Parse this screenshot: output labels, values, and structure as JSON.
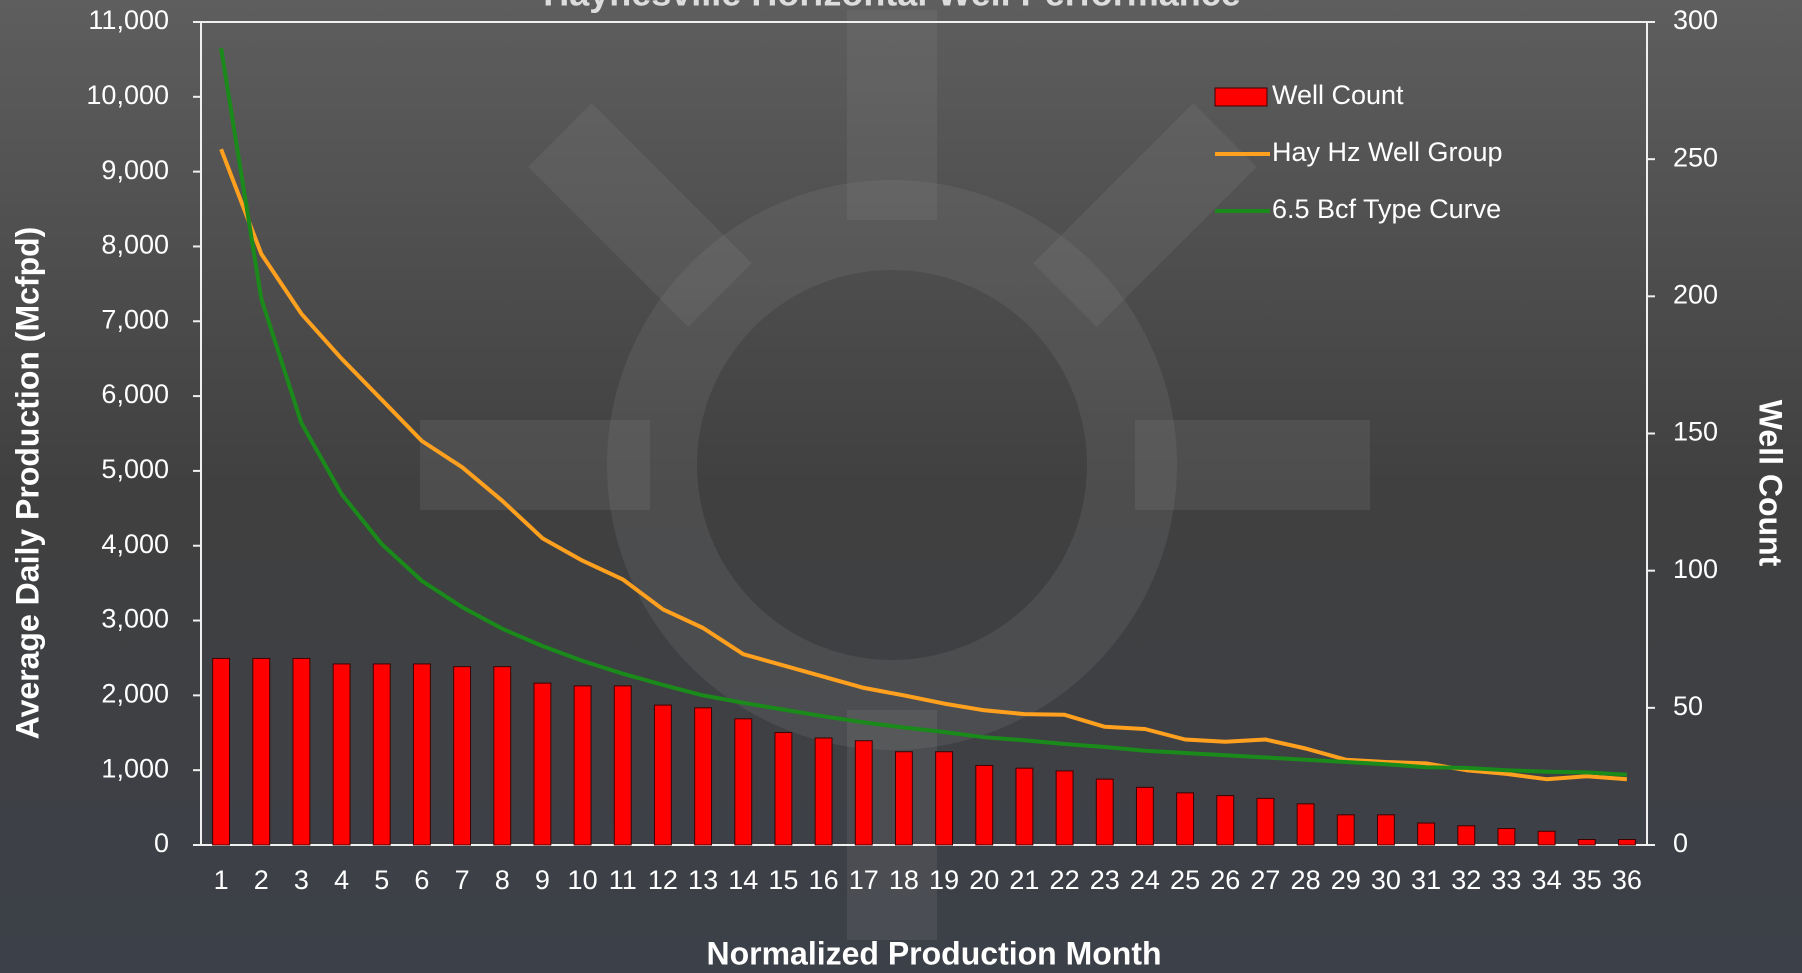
{
  "chart_data": {
    "type": "bar",
    "title": "Haynesville Horizontal Well Performance",
    "x_label": "Normalized Production Month",
    "y_label": "Average Daily Production (Mcfpd)",
    "y2_label": "Well Count",
    "categories": [
      "1",
      "2",
      "3",
      "4",
      "5",
      "6",
      "7",
      "8",
      "9",
      "10",
      "11",
      "12",
      "13",
      "14",
      "15",
      "16",
      "17",
      "18",
      "19",
      "20",
      "21",
      "22",
      "23",
      "24",
      "25",
      "26",
      "27",
      "28",
      "29",
      "30",
      "31",
      "32",
      "33",
      "34",
      "35",
      "36"
    ],
    "ylim": [
      0,
      11000
    ],
    "yticks": [
      0,
      {
        "value": 1000,
        "label": "1,000"
      },
      {
        "value": 2000,
        "label": "2,000"
      },
      {
        "value": 3000,
        "label": "3,000"
      },
      {
        "value": 4000,
        "label": "4,000"
      },
      {
        "value": 5000,
        "label": "5,000"
      },
      {
        "value": 6000,
        "label": "6,000"
      },
      {
        "value": 7000,
        "label": "7,000"
      },
      {
        "value": 8000,
        "label": "8,000"
      },
      {
        "value": 9000,
        "label": "9,000"
      },
      {
        "value": 10000,
        "label": "10,000"
      },
      {
        "value": 11000,
        "label": "11,000"
      }
    ],
    "y2lim": [
      0,
      300
    ],
    "y2ticks": [
      0,
      50,
      100,
      150,
      200,
      250,
      300
    ],
    "grid": false,
    "legend": "top-right",
    "series": [
      {
        "name": "Well Count",
        "type": "bar",
        "axis": "y2",
        "color": "#ff0000",
        "values": [
          68,
          68,
          68,
          66,
          66,
          66,
          65,
          65,
          59,
          58,
          58,
          51,
          50,
          46,
          41,
          39,
          38,
          34,
          34,
          29,
          28,
          27,
          24,
          21,
          19,
          18,
          17,
          15,
          11,
          11,
          8,
          7,
          6,
          5,
          2,
          2
        ]
      },
      {
        "name": "Hay Hz Well Group",
        "type": "line",
        "color": "#ffa01e",
        "values": [
          9300,
          7900,
          7100,
          6500,
          5950,
          5400,
          5050,
          4600,
          4100,
          3800,
          3550,
          3150,
          2900,
          2550,
          2400,
          2250,
          2100,
          2000,
          1890,
          1800,
          1750,
          1740,
          1580,
          1550,
          1410,
          1380,
          1410,
          1290,
          1140,
          1110,
          1090,
          1000,
          950,
          880,
          920,
          880
        ]
      },
      {
        "name": "6.5 Bcf Type Curve",
        "type": "line",
        "color": "#1a8a1a",
        "values": [
          10650,
          7300,
          5640,
          4690,
          4020,
          3530,
          3180,
          2890,
          2660,
          2460,
          2290,
          2140,
          2000,
          1900,
          1810,
          1720,
          1640,
          1570,
          1510,
          1440,
          1400,
          1350,
          1310,
          1260,
          1230,
          1200,
          1170,
          1140,
          1110,
          1080,
          1040,
          1030,
          1000,
          980,
          970,
          940
        ]
      }
    ]
  }
}
